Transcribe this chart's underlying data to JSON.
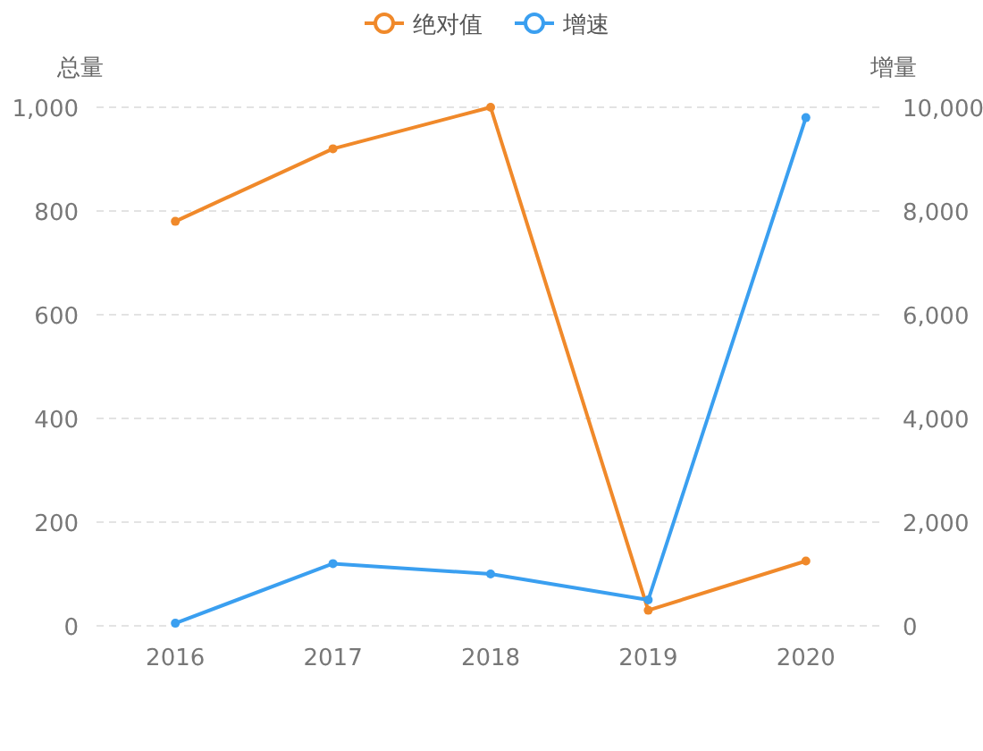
{
  "chart_data": {
    "type": "line",
    "categories": [
      "2016",
      "2017",
      "2018",
      "2019",
      "2020"
    ],
    "ylabel": "总量",
    "y2label": "增量",
    "series": [
      {
        "name": "绝对值",
        "color": "#f0892a",
        "values": [
          780,
          920,
          1000,
          30,
          125
        ]
      },
      {
        "name": "增速",
        "color": "#3a9ff0",
        "axis": "y2",
        "values": [
          50,
          1200,
          1000,
          500,
          9800
        ]
      }
    ],
    "ylim": [
      0,
      1000
    ],
    "yticks": [
      0,
      200,
      400,
      600,
      800,
      {
        "value": 1000,
        "label": "1,000"
      }
    ],
    "y2lim": [
      0,
      10000
    ],
    "y2ticks": [
      0,
      {
        "value": 2000,
        "label": "2,000"
      },
      {
        "value": 4000,
        "label": "4,000"
      },
      {
        "value": 6000,
        "label": "6,000"
      },
      {
        "value": 8000,
        "label": "8,000"
      },
      {
        "value": 10000,
        "label": "10,000"
      }
    ],
    "grid": "y",
    "legend": "top",
    "marker": "circle"
  }
}
